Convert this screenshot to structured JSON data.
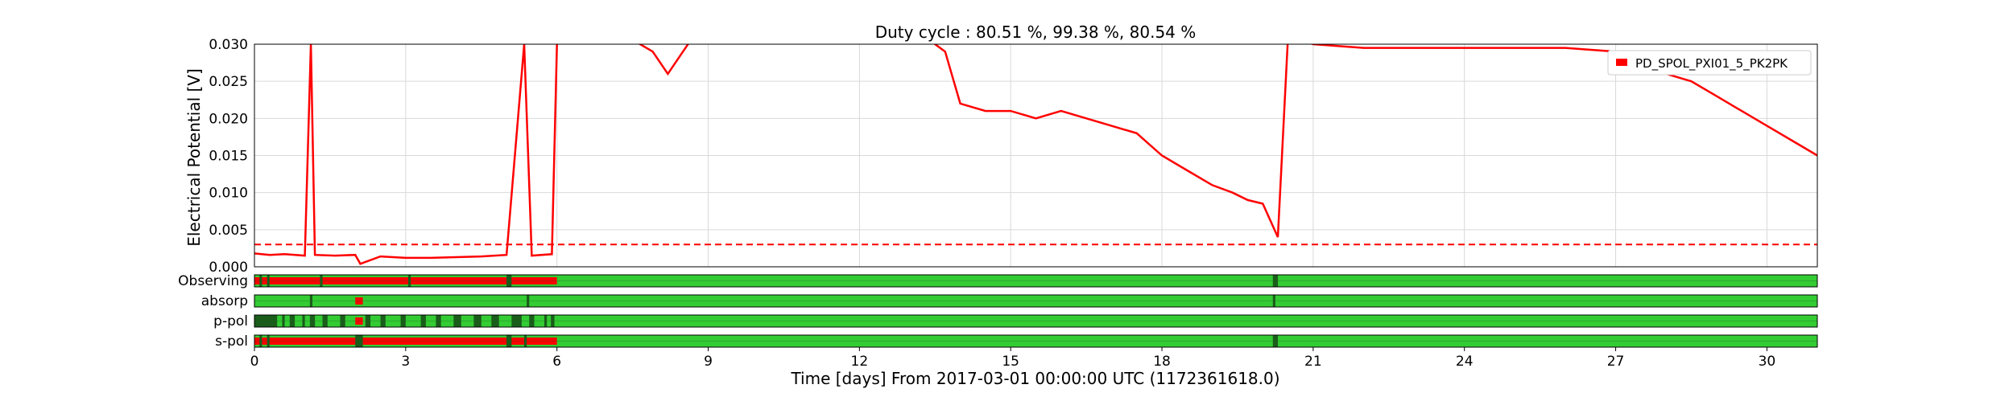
{
  "chart_data": {
    "type": "line",
    "title": "Duty cycle : 80.51 %, 99.38 %, 80.54 %",
    "xlabel": "Time [days] From 2017-03-01 00:00:00 UTC (1172361618.0)",
    "ylabel": "Electrical Potential [V]",
    "xlim": [
      0,
      31
    ],
    "ylim": [
      0,
      0.03
    ],
    "x_ticks": [
      "0",
      "3",
      "6",
      "9",
      "12",
      "15",
      "18",
      "21",
      "24",
      "27",
      "30"
    ],
    "y_ticks": [
      "0.000",
      "0.005",
      "0.010",
      "0.015",
      "0.020",
      "0.025",
      "0.030"
    ],
    "grid": true,
    "legend_position": "top-right",
    "threshold": 0.003,
    "series": [
      {
        "name": "PD_SPOL_PXI01_5_PK2PK",
        "color": "#ff0000",
        "x": [
          0,
          0.3,
          0.6,
          1.0,
          1.12,
          1.2,
          1.6,
          2.0,
          2.1,
          2.5,
          3.0,
          3.5,
          4.0,
          4.5,
          5.0,
          5.35,
          5.5,
          5.9,
          6.0,
          6.2,
          6.8,
          7.4,
          7.9,
          8.2,
          8.5,
          8.7,
          9.0,
          11.0,
          12.5,
          13.3,
          13.7,
          14.0,
          14.5,
          15.0,
          15.5,
          16.0,
          16.5,
          17.0,
          17.5,
          18.0,
          18.5,
          19.0,
          19.4,
          19.7,
          20.0,
          20.3,
          20.5,
          21.0,
          22.0,
          23.0,
          24.0,
          25.0,
          26.0,
          27.0,
          27.5,
          28.0,
          28.5,
          29.0,
          29.5,
          30.0,
          30.5,
          31.0
        ],
        "y": [
          0.0018,
          0.0016,
          0.0017,
          0.0015,
          0.03,
          0.0016,
          0.0015,
          0.0016,
          0.0004,
          0.0014,
          0.0012,
          0.0012,
          0.0013,
          0.0014,
          0.0016,
          0.03,
          0.0015,
          0.0017,
          0.03,
          0.031,
          0.031,
          0.031,
          0.029,
          0.026,
          0.029,
          0.031,
          0.031,
          0.031,
          0.031,
          0.031,
          0.029,
          0.022,
          0.021,
          0.021,
          0.02,
          0.021,
          0.02,
          0.019,
          0.018,
          0.015,
          0.013,
          0.011,
          0.01,
          0.009,
          0.0085,
          0.004,
          0.031,
          0.03,
          0.0295,
          0.0295,
          0.0295,
          0.0295,
          0.0295,
          0.029,
          0.028,
          0.026,
          0.025,
          0.023,
          0.021,
          0.019,
          0.017,
          0.015
        ]
      }
    ],
    "segment_panels": [
      {
        "label": "Observing",
        "inactive": [
          [
            0,
            6.0
          ]
        ],
        "markers": [
          [
            0.1,
            0.15
          ],
          [
            0.25,
            0.3
          ],
          [
            1.3,
            1.35
          ],
          [
            3.05,
            3.1
          ],
          [
            5.0,
            5.1
          ],
          [
            20.2,
            20.3
          ]
        ]
      },
      {
        "label": "absorp",
        "inactive": [
          [
            2.0,
            2.15
          ]
        ],
        "markers": [
          [
            1.1,
            1.15
          ],
          [
            5.4,
            5.45
          ],
          [
            20.2,
            20.25
          ]
        ]
      },
      {
        "label": "p-pol",
        "inactive": [
          [
            2.0,
            2.15
          ]
        ],
        "markers": [
          [
            0.0,
            0.45
          ],
          [
            0.55,
            0.6
          ],
          [
            0.7,
            0.8
          ],
          [
            0.95,
            1.0
          ],
          [
            1.1,
            1.2
          ],
          [
            1.35,
            1.45
          ],
          [
            1.7,
            1.8
          ],
          [
            2.2,
            2.3
          ],
          [
            2.5,
            2.6
          ],
          [
            2.9,
            3.0
          ],
          [
            3.3,
            3.4
          ],
          [
            3.6,
            3.7
          ],
          [
            3.95,
            4.1
          ],
          [
            4.35,
            4.5
          ],
          [
            4.7,
            4.85
          ],
          [
            5.1,
            5.3
          ],
          [
            5.45,
            5.55
          ],
          [
            5.75,
            5.8
          ],
          [
            5.88,
            5.95
          ]
        ]
      },
      {
        "label": "s-pol",
        "inactive": [
          [
            0,
            6.0
          ]
        ],
        "markers": [
          [
            0.1,
            0.15
          ],
          [
            0.25,
            0.3
          ],
          [
            2.0,
            2.15
          ],
          [
            5.0,
            5.1
          ],
          [
            5.35,
            5.4
          ],
          [
            20.2,
            20.3
          ]
        ]
      }
    ],
    "colors": {
      "active": "#33cc33",
      "inactive": "#ff0000",
      "marker": "#1a5c1a",
      "threshold": "#ff0000",
      "grid": "#d9d9d9"
    }
  }
}
